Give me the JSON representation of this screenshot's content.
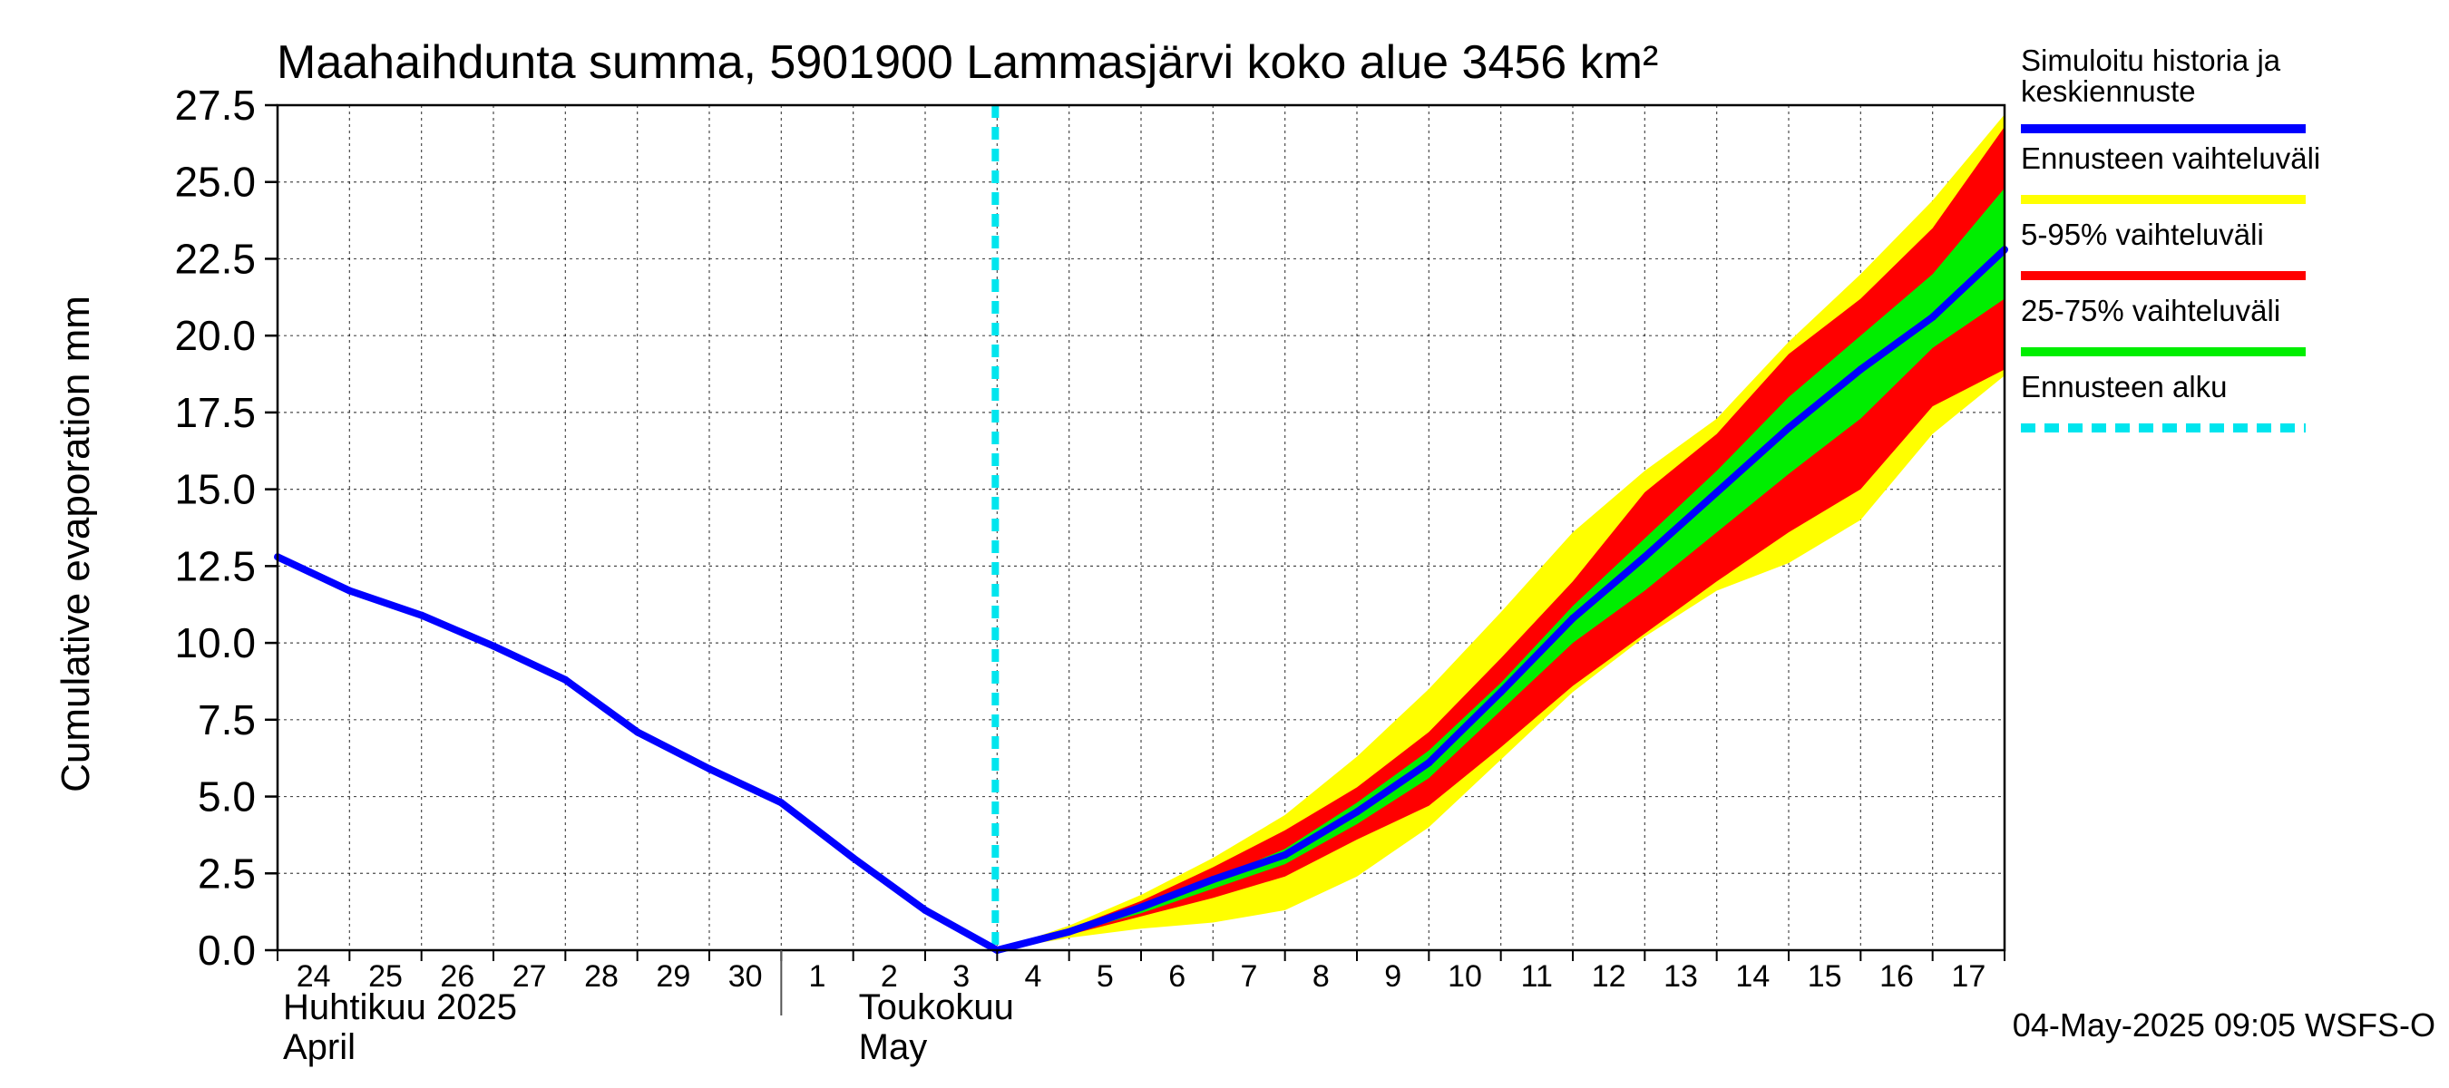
{
  "chart_data": {
    "type": "area",
    "title": "Maahaihdunta summa, 5901900 Lammasjärvi koko alue 3456 km²",
    "ylabel": "Cumulative evaporation   mm",
    "ylim": [
      0,
      27.5
    ],
    "yticks": [
      0,
      2.5,
      5,
      7.5,
      10,
      12.5,
      15,
      17.5,
      20,
      22.5,
      25,
      27.5
    ],
    "ytick_labels": [
      "0.0",
      "2.5",
      "5.0",
      "7.5",
      "10.0",
      "12.5",
      "15.0",
      "17.5",
      "20.0",
      "22.5",
      "25.0",
      "27.5"
    ],
    "x_start": "2025-04-24",
    "x_end": "2025-05-18",
    "day_labels": [
      {
        "date": "2025-04-24",
        "label": "24"
      },
      {
        "date": "2025-04-25",
        "label": "25"
      },
      {
        "date": "2025-04-26",
        "label": "26"
      },
      {
        "date": "2025-04-27",
        "label": "27"
      },
      {
        "date": "2025-04-28",
        "label": "28"
      },
      {
        "date": "2025-04-29",
        "label": "29"
      },
      {
        "date": "2025-04-30",
        "label": "30"
      },
      {
        "date": "2025-05-01",
        "label": "1"
      },
      {
        "date": "2025-05-02",
        "label": "2"
      },
      {
        "date": "2025-05-03",
        "label": "3"
      },
      {
        "date": "2025-05-04",
        "label": "4"
      },
      {
        "date": "2025-05-05",
        "label": "5"
      },
      {
        "date": "2025-05-06",
        "label": "6"
      },
      {
        "date": "2025-05-07",
        "label": "7"
      },
      {
        "date": "2025-05-08",
        "label": "8"
      },
      {
        "date": "2025-05-09",
        "label": "9"
      },
      {
        "date": "2025-05-10",
        "label": "10"
      },
      {
        "date": "2025-05-11",
        "label": "11"
      },
      {
        "date": "2025-05-12",
        "label": "12"
      },
      {
        "date": "2025-05-13",
        "label": "13"
      },
      {
        "date": "2025-05-14",
        "label": "14"
      },
      {
        "date": "2025-05-15",
        "label": "15"
      },
      {
        "date": "2025-05-16",
        "label": "16"
      },
      {
        "date": "2025-05-17",
        "label": "17"
      }
    ],
    "month_labels": [
      {
        "date": "2025-04-24",
        "line1": "Huhtikuu  2025",
        "line2": "April"
      },
      {
        "date": "2025-05-02",
        "line1": "Toukokuu",
        "line2": "May"
      }
    ],
    "month_boundary": "2025-05-01",
    "forecast_start": "2025-05-04",
    "x": [
      "2025-04-24",
      "2025-04-25",
      "2025-04-26",
      "2025-04-27",
      "2025-04-28",
      "2025-04-29",
      "2025-04-30",
      "2025-05-01",
      "2025-05-02",
      "2025-05-03",
      "2025-05-04",
      "2025-05-05",
      "2025-05-06",
      "2025-05-07",
      "2025-05-08",
      "2025-05-09",
      "2025-05-10",
      "2025-05-11",
      "2025-05-12",
      "2025-05-13",
      "2025-05-14",
      "2025-05-15",
      "2025-05-16",
      "2025-05-17",
      "2025-05-18"
    ],
    "bands": [
      {
        "name": "Ennusteen vaihteluväli",
        "color": "#ffff00",
        "start_index": 10,
        "upper": [
          0.0,
          0.8,
          1.8,
          3.0,
          4.4,
          6.3,
          8.5,
          11.0,
          13.6,
          15.6,
          17.3,
          19.8,
          22.0,
          24.4,
          27.2
        ],
        "lower": [
          0.0,
          0.4,
          0.7,
          0.9,
          1.3,
          2.4,
          4.0,
          6.2,
          8.4,
          10.2,
          11.7,
          12.6,
          14.0,
          16.8,
          18.7
        ]
      },
      {
        "name": "5-95% vaihteluväli",
        "color": "#ff0000",
        "start_index": 10,
        "upper": [
          0.0,
          0.7,
          1.6,
          2.7,
          3.9,
          5.3,
          7.1,
          9.5,
          12.0,
          14.9,
          16.8,
          19.4,
          21.2,
          23.5,
          26.8
        ],
        "lower": [
          0.0,
          0.5,
          1.1,
          1.7,
          2.4,
          3.6,
          4.7,
          6.6,
          8.6,
          10.3,
          12.0,
          13.6,
          15.0,
          17.7,
          18.9
        ]
      },
      {
        "name": "25-75% vaihteluväli",
        "color": "#00ee00",
        "start_index": 10,
        "upper": [
          0.0,
          0.65,
          1.4,
          2.3,
          3.3,
          4.8,
          6.5,
          8.7,
          11.2,
          13.4,
          15.6,
          18.0,
          20.0,
          22.0,
          24.8
        ],
        "lower": [
          0.0,
          0.55,
          1.2,
          2.0,
          2.8,
          4.1,
          5.6,
          7.8,
          10.0,
          11.7,
          13.6,
          15.5,
          17.3,
          19.6,
          21.2
        ]
      }
    ],
    "series": [
      {
        "name": "Simuloitu historia ja keskiennuste",
        "color": "#0000ff",
        "values": [
          12.8,
          11.7,
          10.9,
          9.9,
          8.8,
          7.1,
          5.9,
          4.8,
          3.0,
          1.3,
          0.0,
          0.6,
          1.4,
          2.3,
          3.1,
          4.5,
          6.1,
          8.4,
          10.8,
          12.8,
          14.9,
          17.0,
          18.9,
          20.6,
          22.8
        ]
      }
    ],
    "legend_position": "right",
    "legend": [
      {
        "label": "Simuloitu historia ja\nkeskiennuste",
        "color": "#0000ff",
        "style": "solid"
      },
      {
        "label": "Ennusteen vaihteluväli",
        "color": "#ffff00",
        "style": "solid"
      },
      {
        "label": "5-95% vaihteluväli",
        "color": "#ff0000",
        "style": "solid"
      },
      {
        "label": "25-75% vaihteluväli",
        "color": "#00ee00",
        "style": "solid"
      },
      {
        "label": "Ennusteen alku",
        "color": "#00e5ee",
        "style": "dashed"
      }
    ],
    "grid": true,
    "timestamp": "04-May-2025 09:05 WSFS-O"
  }
}
